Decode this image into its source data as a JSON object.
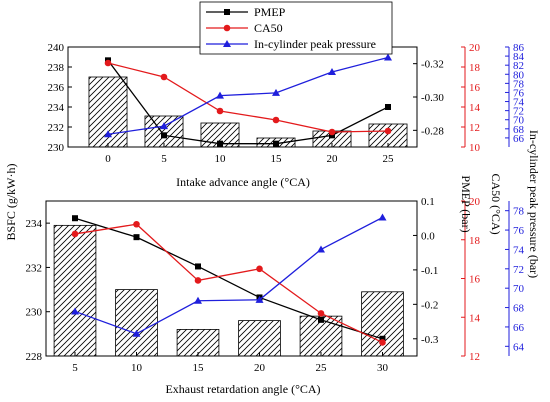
{
  "chart_data": [
    {
      "type": "bar+line",
      "xlabel": "Intake advance angle (°CA)",
      "x": [
        0,
        5,
        10,
        15,
        20,
        25
      ],
      "xticks": [
        "0",
        "5",
        "10",
        "15",
        "20",
        "25"
      ],
      "bars": {
        "name": "BSFC",
        "values": [
          237.0,
          233.1,
          232.4,
          230.9,
          231.6,
          232.3
        ]
      },
      "left_axis": {
        "label": "BSFC (g/kW·h)",
        "ylim": [
          230,
          240
        ],
        "ticks": [
          230,
          232,
          234,
          236,
          238,
          240
        ]
      },
      "pmep_axis": {
        "label": "PMEP (bar)",
        "ylim": [
          -0.33,
          -0.27
        ],
        "ticks": [
          "-0.28",
          "-0.30",
          "-0.32"
        ],
        "tick_values": [
          -0.28,
          -0.3,
          -0.32
        ],
        "inverted": true
      },
      "ca50_axis": {
        "label": "CA50 (°CA)",
        "ylim": [
          10,
          20
        ],
        "ticks": [
          10,
          12,
          14,
          16,
          18,
          20
        ]
      },
      "peak_axis": {
        "label": "In-cylinder peak pressure (bar)",
        "ylim": [
          64,
          86
        ],
        "ticks": [
          66,
          68,
          70,
          72,
          74,
          76,
          78,
          80,
          82,
          84,
          86
        ]
      },
      "series": [
        {
          "name": "PMEP",
          "axis": "pmep",
          "color": "#000000",
          "marker": "square",
          "values": [
            -0.322,
            -0.277,
            -0.272,
            -0.272,
            -0.277,
            -0.294
          ]
        },
        {
          "name": "CA50",
          "axis": "ca50",
          "color": "#e31a1c",
          "marker": "circle",
          "values": [
            18.4,
            17.0,
            13.6,
            12.7,
            11.5,
            11.6
          ]
        },
        {
          "name": "In-cylinder peak pressure",
          "axis": "peak",
          "color": "#1f1fdc",
          "marker": "triangle",
          "values": [
            66.8,
            68.6,
            75.3,
            75.9,
            80.5,
            83.7
          ]
        }
      ]
    },
    {
      "type": "bar+line",
      "xlabel": "Exhaust retardation angle (°CA)",
      "x": [
        5,
        10,
        15,
        20,
        25,
        30
      ],
      "xticks": [
        "5",
        "10",
        "15",
        "20",
        "25",
        "30"
      ],
      "bars": {
        "name": "BSFC",
        "values": [
          233.9,
          231.0,
          229.2,
          229.6,
          229.8,
          230.9
        ]
      },
      "left_axis": {
        "label": "",
        "ylim": [
          228,
          235
        ],
        "ticks": [
          228,
          230,
          232,
          234
        ]
      },
      "pmep_axis": {
        "label": "",
        "ylim": [
          -0.35,
          0.1
        ],
        "ticks": [
          "-0.3",
          "-0.2",
          "-0.1",
          "0.0",
          "0.1"
        ],
        "tick_values": [
          -0.3,
          -0.2,
          -0.1,
          0.0,
          0.1
        ],
        "inverted": false
      },
      "ca50_axis": {
        "label": "",
        "ylim": [
          12,
          20
        ],
        "ticks": [
          12,
          14,
          16,
          18,
          20
        ]
      },
      "peak_axis": {
        "label": "",
        "ylim": [
          63,
          79
        ],
        "ticks": [
          64,
          66,
          68,
          70,
          72,
          74,
          76,
          78
        ]
      },
      "series": [
        {
          "name": "PMEP",
          "axis": "pmep",
          "color": "#000000",
          "marker": "square",
          "values": [
            0.05,
            -0.005,
            -0.09,
            -0.18,
            -0.245,
            -0.3
          ]
        },
        {
          "name": "CA50",
          "axis": "ca50",
          "color": "#e31a1c",
          "marker": "circle",
          "values": [
            18.3,
            18.8,
            15.9,
            16.5,
            14.2,
            12.7
          ]
        },
        {
          "name": "In-cylinder peak pressure",
          "axis": "peak",
          "color": "#1f1fdc",
          "marker": "triangle",
          "values": [
            67.6,
            65.3,
            68.7,
            68.8,
            74.0,
            77.3
          ]
        }
      ]
    }
  ],
  "legend": {
    "items": [
      {
        "name": "PMEP",
        "color": "#000000",
        "marker": "square"
      },
      {
        "name": "CA50",
        "color": "#e31a1c",
        "marker": "circle"
      },
      {
        "name": "In-cylinder peak pressure",
        "color": "#1f1fdc",
        "marker": "triangle"
      }
    ]
  },
  "colors": {
    "ca50_axis": "#e31a1c",
    "peak_axis": "#1f1fdc",
    "frame": "#000000"
  }
}
